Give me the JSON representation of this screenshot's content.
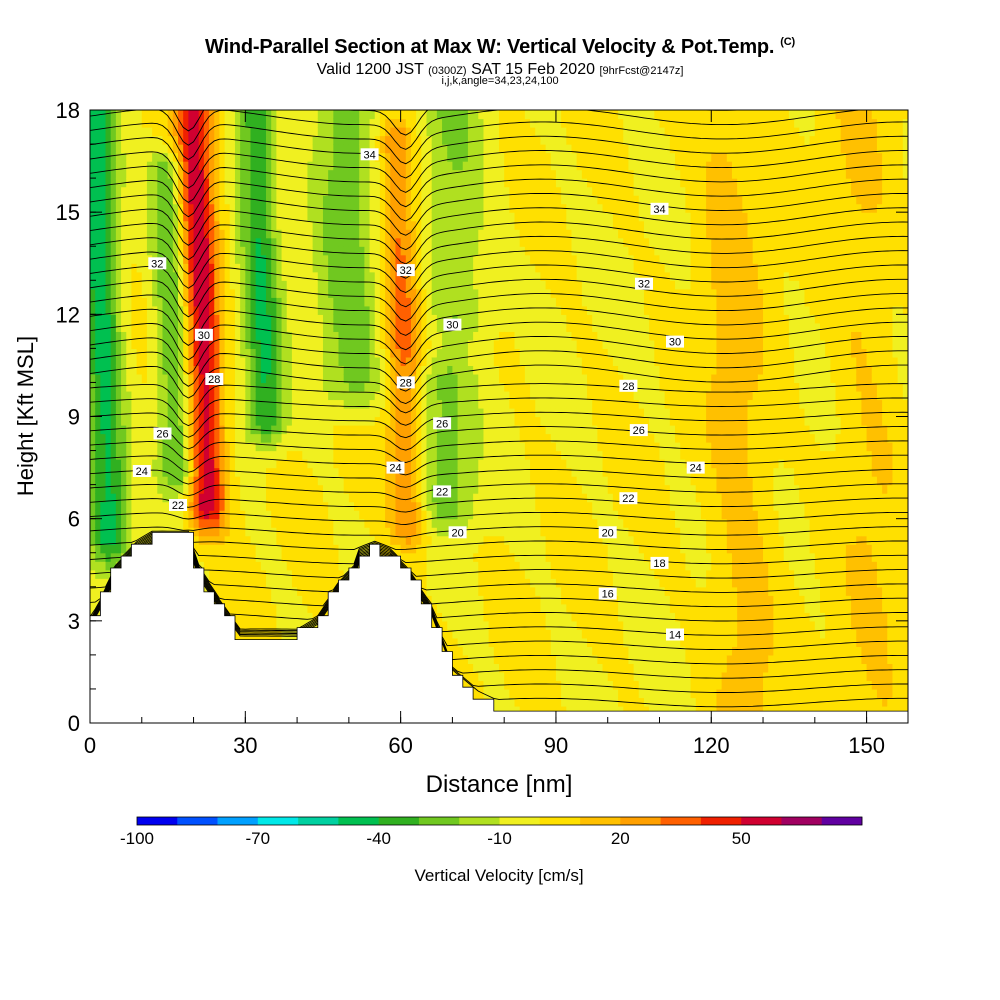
{
  "header": {
    "title": "Wind-Parallel Section at Max W: Vertical Velocity & Pot.Temp.",
    "copyright": "(C)",
    "valid_prefix": "Valid 1200 JST",
    "valid_utc": "(0300Z)",
    "valid_date": "SAT 15 Feb 2020",
    "forecast": "[9hrFcst@2147z]",
    "params": "i,j,k,angle=34,23,24,100"
  },
  "chart_data": {
    "type": "heatmap",
    "xlabel": "Distance [nm]",
    "ylabel": "Height [Kft MSL]",
    "xlim": [
      0,
      158
    ],
    "ylim": [
      0,
      18
    ],
    "xticks": [
      0,
      30,
      60,
      90,
      120,
      150
    ],
    "yticks": [
      0,
      3,
      6,
      9,
      12,
      15,
      18
    ],
    "colorbar": {
      "label": "Vertical Velocity [cm/s]",
      "ticks": [
        -100,
        -70,
        -40,
        -10,
        20,
        50
      ],
      "levels": [
        -100,
        -90,
        -80,
        -70,
        -60,
        -50,
        -40,
        -30,
        -20,
        -10,
        0,
        10,
        20,
        30,
        40,
        50,
        60,
        70
      ],
      "colors": [
        "#0000f0",
        "#0050ff",
        "#00a0ff",
        "#00e8e8",
        "#00d0a0",
        "#00c050",
        "#30b020",
        "#70c820",
        "#b0e020",
        "#f0f020",
        "#ffe000",
        "#ffc000",
        "#ffa000",
        "#ff6000",
        "#f02000",
        "#d00030",
        "#a00060",
        "#6000a0"
      ]
    },
    "terrain_kft": [
      [
        0,
        2.9
      ],
      [
        2,
        3.5
      ],
      [
        5,
        4.5
      ],
      [
        9,
        5.2
      ],
      [
        12,
        5.5
      ],
      [
        19,
        5.5
      ],
      [
        21,
        4.5
      ],
      [
        25,
        3.5
      ],
      [
        29,
        2.6
      ],
      [
        35,
        2.6
      ],
      [
        40,
        2.6
      ],
      [
        44,
        3.0
      ],
      [
        48,
        4.0
      ],
      [
        51,
        4.5
      ],
      [
        52,
        5.0
      ],
      [
        55,
        5.2
      ],
      [
        58,
        5.0
      ],
      [
        62,
        4.3
      ],
      [
        66,
        3.3
      ],
      [
        70,
        1.5
      ],
      [
        75,
        0.8
      ],
      [
        80,
        0.4
      ],
      [
        85,
        0.3
      ],
      [
        158,
        0.3
      ]
    ],
    "w_features": [
      {
        "x": 22,
        "zbot": 6.5,
        "ztop": 18,
        "w": 60
      },
      {
        "x": 61,
        "zbot": 6.0,
        "ztop": 17,
        "w": 35
      },
      {
        "x": 3,
        "zbot": 5.5,
        "ztop": 18,
        "w": -45
      },
      {
        "x": 17,
        "zbot": 7.5,
        "ztop": 16,
        "w": -35
      },
      {
        "x": 34,
        "zbot": 9.0,
        "ztop": 18,
        "w": -40
      },
      {
        "x": 51,
        "zbot": 10.0,
        "ztop": 18,
        "w": -25
      },
      {
        "x": 68,
        "zbot": 6.5,
        "ztop": 10,
        "w": -25
      },
      {
        "x": 72,
        "zbot": 12.0,
        "ztop": 18,
        "w": -20
      },
      {
        "x": 125,
        "zbot": 0.5,
        "ztop": 18,
        "w": 14
      },
      {
        "x": 150,
        "zbot": 0.5,
        "ztop": 18,
        "w": 10
      }
    ],
    "theta_labels": [
      {
        "text": "34",
        "x": 54,
        "y": 16.7
      },
      {
        "text": "34",
        "x": 110,
        "y": 15.1
      },
      {
        "text": "32",
        "x": 13,
        "y": 13.5
      },
      {
        "text": "32",
        "x": 61,
        "y": 13.3
      },
      {
        "text": "32",
        "x": 107,
        "y": 12.9
      },
      {
        "text": "30",
        "x": 22,
        "y": 11.4
      },
      {
        "text": "30",
        "x": 70,
        "y": 11.7
      },
      {
        "text": "30",
        "x": 113,
        "y": 11.2
      },
      {
        "text": "28",
        "x": 24,
        "y": 10.1
      },
      {
        "text": "28",
        "x": 61,
        "y": 10.0
      },
      {
        "text": "28",
        "x": 104,
        "y": 9.9
      },
      {
        "text": "26",
        "x": 14,
        "y": 8.5
      },
      {
        "text": "26",
        "x": 68,
        "y": 8.8
      },
      {
        "text": "26",
        "x": 106,
        "y": 8.6
      },
      {
        "text": "24",
        "x": 10,
        "y": 7.4
      },
      {
        "text": "24",
        "x": 59,
        "y": 7.5
      },
      {
        "text": "24",
        "x": 117,
        "y": 7.5
      },
      {
        "text": "22",
        "x": 17,
        "y": 6.4
      },
      {
        "text": "22",
        "x": 68,
        "y": 6.8
      },
      {
        "text": "22",
        "x": 104,
        "y": 6.6
      },
      {
        "text": "20",
        "x": 71,
        "y": 5.6
      },
      {
        "text": "20",
        "x": 100,
        "y": 5.6
      },
      {
        "text": "18",
        "x": 110,
        "y": 4.7
      },
      {
        "text": "16",
        "x": 100,
        "y": 3.8
      },
      {
        "text": "14",
        "x": 113,
        "y": 2.6
      }
    ]
  }
}
